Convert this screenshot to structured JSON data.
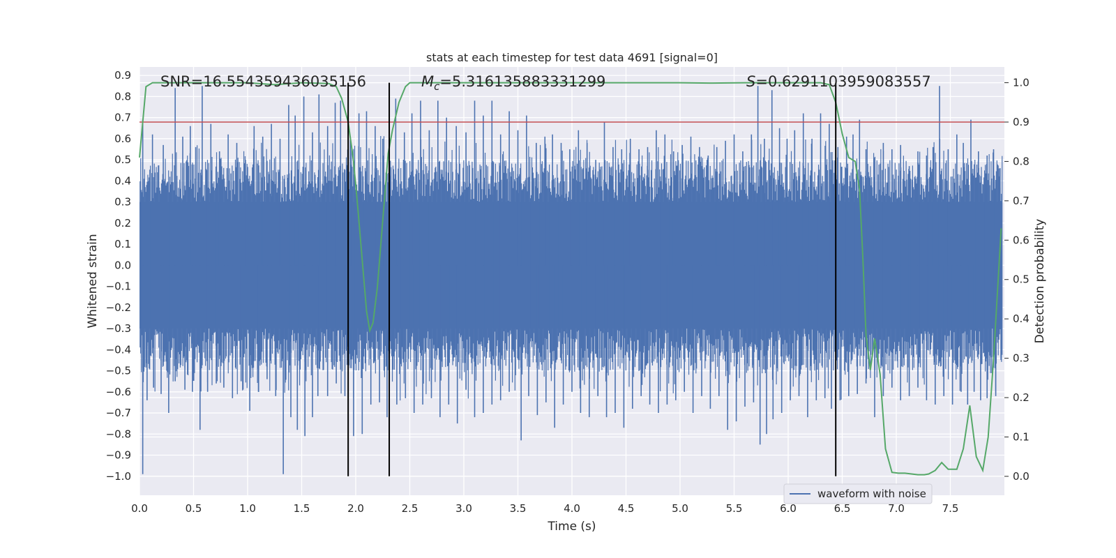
{
  "chart_data": {
    "type": "line",
    "title": "stats at each timestep for test data 4691 [signal=0]",
    "xlabel": "Time (s)",
    "ylabel": "Whitened strain",
    "y2label": "Detection probability",
    "xlim": [
      0.0,
      8.0
    ],
    "ylim": [
      -1.09,
      0.94
    ],
    "y2lim": [
      -0.048,
      1.04
    ],
    "xticks": [
      0.0,
      0.5,
      1.0,
      1.5,
      2.0,
      2.5,
      3.0,
      3.5,
      4.0,
      4.5,
      5.0,
      5.5,
      6.0,
      6.5,
      7.0,
      7.5
    ],
    "xtick_labels": [
      "0.0",
      "0.5",
      "1.0",
      "1.5",
      "2.0",
      "2.5",
      "3.0",
      "3.5",
      "4.0",
      "4.5",
      "5.0",
      "5.5",
      "6.0",
      "6.5",
      "7.0",
      "7.5"
    ],
    "yticks": [
      0.9,
      0.8,
      0.7,
      0.6,
      0.5,
      0.4,
      0.3,
      0.2,
      0.1,
      0.0,
      -0.1,
      -0.2,
      -0.3,
      -0.4,
      -0.5,
      -0.6,
      -0.7,
      -0.8,
      -0.9,
      -1.0
    ],
    "ytick_labels": [
      "0.9",
      "0.8",
      "0.7",
      "0.6",
      "0.5",
      "0.4",
      "0.3",
      "0.2",
      "0.1",
      "0.0",
      "−0.1",
      "−0.2",
      "−0.3",
      "−0.4",
      "−0.5",
      "−0.6",
      "−0.7",
      "−0.8",
      "−0.9",
      "−1.0"
    ],
    "y2ticks": [
      1.0,
      0.9,
      0.8,
      0.7,
      0.6,
      0.5,
      0.4,
      0.3,
      0.2,
      0.1,
      0.0
    ],
    "y2tick_labels": [
      "1.0",
      "0.9",
      "0.8",
      "0.7",
      "0.6",
      "0.5",
      "0.4",
      "0.3",
      "0.2",
      "0.1",
      "0.0"
    ],
    "grid": true,
    "legend": {
      "placement": "lower-right",
      "entries": [
        {
          "label": "waveform with noise",
          "color": "#4c72b0"
        }
      ]
    },
    "annotations": [
      {
        "name": "snr",
        "text": "SNR=16.554359436035156",
        "x": 0.2
      },
      {
        "name": "chirp-mass",
        "prefix": "M",
        "subscript": "c",
        "text": "=5.316135883331299",
        "x": 2.6
      },
      {
        "name": "s-value",
        "prefix": "S",
        "text": "=0.6291103959083557",
        "x": 5.6
      }
    ],
    "threshold": {
      "value_y2": 0.9,
      "color": "#c44e52"
    },
    "vlines": [
      1.93,
      2.31,
      6.44
    ],
    "waveform": {
      "name": "waveform with noise",
      "color": "#4c72b0",
      "band": [
        -0.3,
        0.3
      ],
      "positive_spikes": [
        [
          0.03,
          0.69
        ],
        [
          0.12,
          0.62
        ],
        [
          0.22,
          0.57
        ],
        [
          0.33,
          0.84
        ],
        [
          0.4,
          0.61
        ],
        [
          0.47,
          0.66
        ],
        [
          0.52,
          0.56
        ],
        [
          0.58,
          0.85
        ],
        [
          0.66,
          0.67
        ],
        [
          0.74,
          0.54
        ],
        [
          0.82,
          0.62
        ],
        [
          0.9,
          0.58
        ],
        [
          0.98,
          0.5
        ],
        [
          1.06,
          0.66
        ],
        [
          1.14,
          0.61
        ],
        [
          1.22,
          0.67
        ],
        [
          1.3,
          0.6
        ],
        [
          1.38,
          0.76
        ],
        [
          1.44,
          0.71
        ],
        [
          1.52,
          0.8
        ],
        [
          1.6,
          0.63
        ],
        [
          1.66,
          0.81
        ],
        [
          1.74,
          0.66
        ],
        [
          1.81,
          0.77
        ],
        [
          1.86,
          0.78
        ],
        [
          1.95,
          0.61
        ],
        [
          2.03,
          0.72
        ],
        [
          2.1,
          0.73
        ],
        [
          2.18,
          0.66
        ],
        [
          2.25,
          0.6
        ],
        [
          2.37,
          0.79
        ],
        [
          2.45,
          0.63
        ],
        [
          2.52,
          0.72
        ],
        [
          2.6,
          0.78
        ],
        [
          2.68,
          0.64
        ],
        [
          2.76,
          0.78
        ],
        [
          2.84,
          0.7
        ],
        [
          2.93,
          0.66
        ],
        [
          3.02,
          0.63
        ],
        [
          3.1,
          0.78
        ],
        [
          3.18,
          0.71
        ],
        [
          3.26,
          0.78
        ],
        [
          3.34,
          0.62
        ],
        [
          3.42,
          0.73
        ],
        [
          3.5,
          0.64
        ],
        [
          3.58,
          0.71
        ],
        [
          3.67,
          0.58
        ],
        [
          3.75,
          0.61
        ],
        [
          3.82,
          0.62
        ],
        [
          3.9,
          0.58
        ],
        [
          3.98,
          0.55
        ],
        [
          4.06,
          0.64
        ],
        [
          4.14,
          0.58
        ],
        [
          4.22,
          0.5
        ],
        [
          4.3,
          0.68
        ],
        [
          4.38,
          0.56
        ],
        [
          4.46,
          0.55
        ],
        [
          4.54,
          0.6
        ],
        [
          4.62,
          0.55
        ],
        [
          4.7,
          0.56
        ],
        [
          4.78,
          0.64
        ],
        [
          4.86,
          0.62
        ],
        [
          4.94,
          0.54
        ],
        [
          5.02,
          0.57
        ],
        [
          5.1,
          0.61
        ],
        [
          5.18,
          0.56
        ],
        [
          5.26,
          0.52
        ],
        [
          5.34,
          0.56
        ],
        [
          5.42,
          0.59
        ],
        [
          5.5,
          0.62
        ],
        [
          5.58,
          0.54
        ],
        [
          5.66,
          0.62
        ],
        [
          5.72,
          0.85
        ],
        [
          5.78,
          0.6
        ],
        [
          5.85,
          0.83
        ],
        [
          5.92,
          0.65
        ],
        [
          5.99,
          0.6
        ],
        [
          6.06,
          0.64
        ],
        [
          6.14,
          0.72
        ],
        [
          6.22,
          0.6
        ],
        [
          6.3,
          0.72
        ],
        [
          6.38,
          0.67
        ],
        [
          6.46,
          0.56
        ],
        [
          6.54,
          0.61
        ],
        [
          6.6,
          0.62
        ],
        [
          6.66,
          0.69
        ],
        [
          6.72,
          0.55
        ],
        [
          6.8,
          0.51
        ],
        [
          6.88,
          0.58
        ],
        [
          6.96,
          0.55
        ],
        [
          7.04,
          0.57
        ],
        [
          7.12,
          0.47
        ],
        [
          7.2,
          0.54
        ],
        [
          7.28,
          0.52
        ],
        [
          7.34,
          0.56
        ],
        [
          7.4,
          0.85
        ],
        [
          7.48,
          0.55
        ],
        [
          7.56,
          0.62
        ],
        [
          7.62,
          0.58
        ],
        [
          7.69,
          0.69
        ],
        [
          7.76,
          0.54
        ],
        [
          7.84,
          0.52
        ],
        [
          7.9,
          0.55
        ],
        [
          7.96,
          0.46
        ]
      ],
      "negative_spikes": [
        [
          0.03,
          -0.99
        ],
        [
          0.07,
          -0.64
        ],
        [
          0.13,
          -0.58
        ],
        [
          0.2,
          -0.61
        ],
        [
          0.27,
          -0.7
        ],
        [
          0.33,
          -0.55
        ],
        [
          0.42,
          -0.59
        ],
        [
          0.49,
          -0.6
        ],
        [
          0.56,
          -0.78
        ],
        [
          0.63,
          -0.6
        ],
        [
          0.71,
          -0.56
        ],
        [
          0.78,
          -0.58
        ],
        [
          0.86,
          -0.63
        ],
        [
          0.94,
          -0.55
        ],
        [
          1.02,
          -0.69
        ],
        [
          1.1,
          -0.6
        ],
        [
          1.18,
          -0.54
        ],
        [
          1.26,
          -0.62
        ],
        [
          1.33,
          -0.99
        ],
        [
          1.4,
          -0.72
        ],
        [
          1.46,
          -0.78
        ],
        [
          1.53,
          -0.81
        ],
        [
          1.6,
          -0.72
        ],
        [
          1.65,
          -0.62
        ],
        [
          1.74,
          -0.62
        ],
        [
          1.82,
          -0.56
        ],
        [
          1.9,
          -0.62
        ],
        [
          1.98,
          -0.81
        ],
        [
          2.06,
          -0.8
        ],
        [
          2.14,
          -0.66
        ],
        [
          2.22,
          -0.65
        ],
        [
          2.29,
          -0.72
        ],
        [
          2.38,
          -0.66
        ],
        [
          2.46,
          -0.63
        ],
        [
          2.54,
          -0.7
        ],
        [
          2.62,
          -0.66
        ],
        [
          2.7,
          -0.63
        ],
        [
          2.78,
          -0.72
        ],
        [
          2.86,
          -0.66
        ],
        [
          2.94,
          -0.75
        ],
        [
          3.02,
          -0.59
        ],
        [
          3.1,
          -0.72
        ],
        [
          3.18,
          -0.7
        ],
        [
          3.26,
          -0.66
        ],
        [
          3.34,
          -0.64
        ],
        [
          3.42,
          -0.6
        ],
        [
          3.53,
          -0.83
        ],
        [
          3.6,
          -0.62
        ],
        [
          3.68,
          -0.71
        ],
        [
          3.76,
          -0.65
        ],
        [
          3.84,
          -0.77
        ],
        [
          3.92,
          -0.66
        ],
        [
          4.0,
          -0.6
        ],
        [
          4.08,
          -0.7
        ],
        [
          4.16,
          -0.72
        ],
        [
          4.24,
          -0.62
        ],
        [
          4.32,
          -0.72
        ],
        [
          4.4,
          -0.7
        ],
        [
          4.48,
          -0.77
        ],
        [
          4.56,
          -0.68
        ],
        [
          4.64,
          -0.62
        ],
        [
          4.72,
          -0.66
        ],
        [
          4.8,
          -0.7
        ],
        [
          4.88,
          -0.66
        ],
        [
          4.96,
          -0.64
        ],
        [
          5.04,
          -0.6
        ],
        [
          5.12,
          -0.7
        ],
        [
          5.2,
          -0.62
        ],
        [
          5.28,
          -0.68
        ],
        [
          5.36,
          -0.62
        ],
        [
          5.44,
          -0.78
        ],
        [
          5.52,
          -0.74
        ],
        [
          5.6,
          -0.67
        ],
        [
          5.68,
          -0.65
        ],
        [
          5.74,
          -0.85
        ],
        [
          5.8,
          -0.8
        ],
        [
          5.86,
          -0.73
        ],
        [
          5.94,
          -0.7
        ],
        [
          6.02,
          -0.64
        ],
        [
          6.1,
          -0.62
        ],
        [
          6.18,
          -0.72
        ],
        [
          6.26,
          -0.64
        ],
        [
          6.34,
          -0.63
        ],
        [
          6.4,
          -0.68
        ],
        [
          6.48,
          -0.64
        ],
        [
          6.56,
          -0.62
        ],
        [
          6.64,
          -0.61
        ],
        [
          6.72,
          -0.56
        ],
        [
          6.8,
          -0.72
        ],
        [
          6.88,
          -0.62
        ],
        [
          6.96,
          -0.58
        ],
        [
          7.04,
          -0.64
        ],
        [
          7.12,
          -0.62
        ],
        [
          7.2,
          -0.58
        ],
        [
          7.28,
          -0.64
        ],
        [
          7.36,
          -0.66
        ],
        [
          7.44,
          -0.62
        ],
        [
          7.52,
          -0.66
        ],
        [
          7.6,
          -0.6
        ],
        [
          7.66,
          -0.66
        ],
        [
          7.72,
          -0.6
        ],
        [
          7.78,
          -0.64
        ],
        [
          7.84,
          -0.63
        ],
        [
          7.92,
          -0.62
        ]
      ]
    },
    "probability": {
      "name": "detection probability",
      "color": "#55a868",
      "x": [
        0.0,
        0.06,
        0.12,
        0.2,
        0.5,
        1.0,
        1.25,
        1.5,
        1.75,
        1.82,
        1.87,
        1.93,
        1.98,
        2.02,
        2.06,
        2.1,
        2.13,
        2.16,
        2.2,
        2.25,
        2.3,
        2.34,
        2.4,
        2.46,
        2.5,
        3.0,
        4.0,
        5.0,
        5.3,
        5.6,
        6.0,
        6.3,
        6.38,
        6.44,
        6.5,
        6.56,
        6.62,
        6.66,
        6.69,
        6.72,
        6.76,
        6.8,
        6.85,
        6.9,
        6.96,
        7.02,
        7.08,
        7.14,
        7.2,
        7.26,
        7.3,
        7.36,
        7.42,
        7.48,
        7.56,
        7.62,
        7.68,
        7.74,
        7.8,
        7.85,
        7.9,
        7.97
      ],
      "y": [
        0.81,
        0.99,
        1.0,
        1.0,
        1.0,
        1.0,
        0.995,
        1.0,
        0.998,
        0.99,
        0.96,
        0.9,
        0.8,
        0.68,
        0.55,
        0.42,
        0.37,
        0.39,
        0.48,
        0.65,
        0.82,
        0.88,
        0.95,
        0.99,
        1.0,
        1.0,
        1.0,
        1.0,
        0.999,
        1.0,
        1.0,
        1.0,
        0.995,
        0.95,
        0.87,
        0.81,
        0.8,
        0.73,
        0.56,
        0.36,
        0.27,
        0.35,
        0.26,
        0.07,
        0.01,
        0.008,
        0.008,
        0.006,
        0.004,
        0.004,
        0.006,
        0.015,
        0.035,
        0.018,
        0.018,
        0.07,
        0.18,
        0.05,
        0.015,
        0.1,
        0.3,
        0.63
      ]
    }
  }
}
